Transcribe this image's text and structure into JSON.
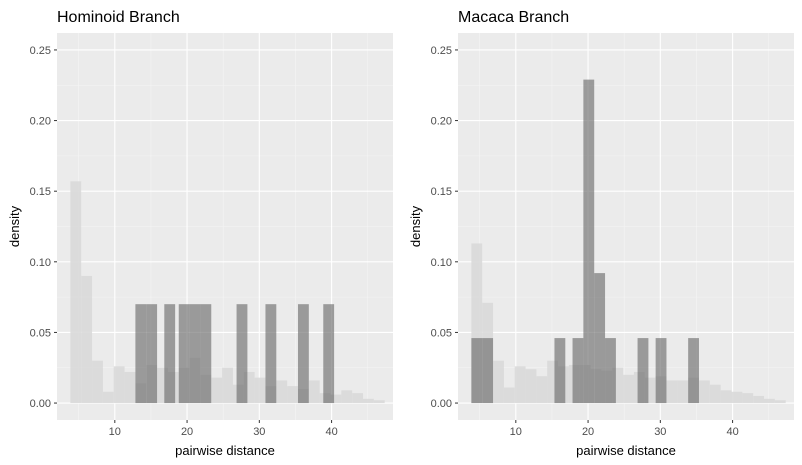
{
  "chart_data": [
    {
      "type": "histogram",
      "title": "Hominoid Branch",
      "xlabel": "pairwise distance",
      "ylabel": "density",
      "xlim": [
        2.0,
        48.5
      ],
      "ylim": [
        -0.012,
        0.262
      ],
      "xticks": [
        10,
        20,
        30,
        40
      ],
      "yticks": [
        0.0,
        0.05,
        0.1,
        0.15,
        0.2,
        0.25
      ],
      "ytick_labels": [
        "0.00",
        "0.05",
        "0.10",
        "0.15",
        "0.20",
        "0.25"
      ],
      "grid": true,
      "legend": "none",
      "bin_width": 1.5,
      "series": [
        {
          "role": "background",
          "color": "#d9d9d9",
          "opacity": 0.9,
          "bins": [
            {
              "x": 4.6,
              "y": 0.157
            },
            {
              "x": 6.1,
              "y": 0.09
            },
            {
              "x": 7.6,
              "y": 0.03
            },
            {
              "x": 9.1,
              "y": 0.008
            },
            {
              "x": 10.6,
              "y": 0.026
            },
            {
              "x": 12.1,
              "y": 0.022
            },
            {
              "x": 13.6,
              "y": 0.014
            },
            {
              "x": 15.1,
              "y": 0.027
            },
            {
              "x": 16.6,
              "y": 0.025
            },
            {
              "x": 18.1,
              "y": 0.022
            },
            {
              "x": 19.6,
              "y": 0.025
            },
            {
              "x": 21.1,
              "y": 0.032
            },
            {
              "x": 22.6,
              "y": 0.02
            },
            {
              "x": 24.1,
              "y": 0.018
            },
            {
              "x": 25.6,
              "y": 0.025
            },
            {
              "x": 27.1,
              "y": 0.013
            },
            {
              "x": 28.6,
              "y": 0.022
            },
            {
              "x": 30.1,
              "y": 0.018
            },
            {
              "x": 31.6,
              "y": 0.012
            },
            {
              "x": 33.1,
              "y": 0.016
            },
            {
              "x": 34.6,
              "y": 0.012
            },
            {
              "x": 36.1,
              "y": 0.01
            },
            {
              "x": 37.6,
              "y": 0.016
            },
            {
              "x": 39.1,
              "y": 0.007
            },
            {
              "x": 40.6,
              "y": 0.006
            },
            {
              "x": 42.1,
              "y": 0.009
            },
            {
              "x": 43.6,
              "y": 0.007
            },
            {
              "x": 45.1,
              "y": 0.003
            },
            {
              "x": 46.6,
              "y": 0.002
            }
          ]
        },
        {
          "role": "foreground",
          "color": "#6e6e6e",
          "opacity": 0.65,
          "bins": [
            {
              "x": 13.6,
              "y": 0.07
            },
            {
              "x": 15.1,
              "y": 0.07
            },
            {
              "x": 17.6,
              "y": 0.07
            },
            {
              "x": 19.6,
              "y": 0.07
            },
            {
              "x": 21.1,
              "y": 0.07
            },
            {
              "x": 22.6,
              "y": 0.07
            },
            {
              "x": 27.6,
              "y": 0.07
            },
            {
              "x": 31.6,
              "y": 0.07
            },
            {
              "x": 36.1,
              "y": 0.07
            },
            {
              "x": 39.6,
              "y": 0.07
            }
          ]
        }
      ]
    },
    {
      "type": "histogram",
      "title": "Macaca Branch",
      "xlabel": "pairwise distance",
      "ylabel": "density",
      "xlim": [
        2.0,
        48.5
      ],
      "ylim": [
        -0.012,
        0.262
      ],
      "xticks": [
        10,
        20,
        30,
        40
      ],
      "yticks": [
        0.0,
        0.05,
        0.1,
        0.15,
        0.2,
        0.25
      ],
      "ytick_labels": [
        "0.00",
        "0.05",
        "0.10",
        "0.15",
        "0.20",
        "0.25"
      ],
      "grid": true,
      "legend": "none",
      "bin_width": 1.5,
      "series": [
        {
          "role": "background",
          "color": "#d9d9d9",
          "opacity": 0.9,
          "bins": [
            {
              "x": 4.6,
              "y": 0.113
            },
            {
              "x": 6.1,
              "y": 0.071
            },
            {
              "x": 7.6,
              "y": 0.03
            },
            {
              "x": 9.1,
              "y": 0.011
            },
            {
              "x": 10.6,
              "y": 0.026
            },
            {
              "x": 12.1,
              "y": 0.024
            },
            {
              "x": 13.6,
              "y": 0.019
            },
            {
              "x": 15.1,
              "y": 0.03
            },
            {
              "x": 16.6,
              "y": 0.026
            },
            {
              "x": 18.1,
              "y": 0.027
            },
            {
              "x": 19.6,
              "y": 0.027
            },
            {
              "x": 21.1,
              "y": 0.024
            },
            {
              "x": 22.6,
              "y": 0.023
            },
            {
              "x": 24.1,
              "y": 0.025
            },
            {
              "x": 25.6,
              "y": 0.02
            },
            {
              "x": 27.1,
              "y": 0.022
            },
            {
              "x": 28.6,
              "y": 0.018
            },
            {
              "x": 30.1,
              "y": 0.019
            },
            {
              "x": 31.6,
              "y": 0.016
            },
            {
              "x": 33.1,
              "y": 0.016
            },
            {
              "x": 34.6,
              "y": 0.018
            },
            {
              "x": 36.1,
              "y": 0.016
            },
            {
              "x": 37.6,
              "y": 0.013
            },
            {
              "x": 39.1,
              "y": 0.009
            },
            {
              "x": 40.6,
              "y": 0.008
            },
            {
              "x": 42.1,
              "y": 0.007
            },
            {
              "x": 43.6,
              "y": 0.005
            },
            {
              "x": 45.1,
              "y": 0.003
            },
            {
              "x": 46.6,
              "y": 0.002
            }
          ]
        },
        {
          "role": "foreground",
          "color": "#6e6e6e",
          "opacity": 0.65,
          "bins": [
            {
              "x": 4.6,
              "y": 0.046
            },
            {
              "x": 6.1,
              "y": 0.046
            },
            {
              "x": 16.1,
              "y": 0.046
            },
            {
              "x": 18.6,
              "y": 0.046
            },
            {
              "x": 20.1,
              "y": 0.229
            },
            {
              "x": 21.6,
              "y": 0.092
            },
            {
              "x": 23.1,
              "y": 0.046
            },
            {
              "x": 27.6,
              "y": 0.046
            },
            {
              "x": 30.1,
              "y": 0.046
            },
            {
              "x": 34.6,
              "y": 0.046
            }
          ]
        }
      ]
    }
  ]
}
